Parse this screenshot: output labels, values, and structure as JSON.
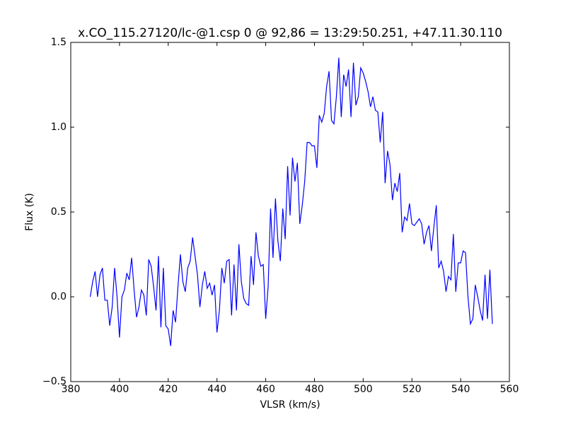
{
  "chart_data": {
    "type": "line",
    "title": "x.CO_115.27120/lc-@1.csp 0 @ 92,86 = 13:29:50.251, +47.11.30.110",
    "xlabel": "VLSR (km/s)",
    "ylabel": "Flux (K)",
    "color": "#0000ff",
    "x": [
      388,
      389,
      390,
      391,
      392,
      393,
      394,
      395,
      396,
      397,
      398,
      399,
      400,
      401,
      402,
      403,
      404,
      405,
      406,
      407,
      408,
      409,
      410,
      411,
      412,
      413,
      414,
      415,
      416,
      417,
      418,
      419,
      420,
      421,
      422,
      423,
      424,
      425,
      426,
      427,
      428,
      429,
      430,
      431,
      432,
      433,
      434,
      435,
      436,
      437,
      438,
      439,
      440,
      441,
      442,
      443,
      444,
      445,
      446,
      447,
      448,
      449,
      450,
      451,
      452,
      453,
      454,
      455,
      456,
      457,
      458,
      459,
      460,
      461,
      462,
      463,
      464,
      465,
      466,
      467,
      468,
      469,
      470,
      471,
      472,
      473,
      474,
      475,
      476,
      477,
      478,
      479,
      480,
      481,
      482,
      483,
      484,
      485,
      486,
      487,
      488,
      489,
      490,
      491,
      492,
      493,
      494,
      495,
      496,
      497,
      498,
      499,
      500,
      501,
      502,
      503,
      504,
      505,
      506,
      507,
      508,
      509,
      510,
      511,
      512,
      513,
      514,
      515,
      516,
      517,
      518,
      519,
      520,
      521,
      522,
      523,
      524,
      525,
      526,
      527,
      528,
      529,
      530,
      531,
      532,
      533,
      534,
      535,
      536,
      537,
      538,
      539,
      540,
      541,
      542,
      543,
      544,
      545,
      546,
      547,
      548,
      549,
      550,
      551,
      552,
      553
    ],
    "values": [
      0,
      0.09,
      0.15,
      0,
      0.13,
      0.17,
      -0.02,
      -0.02,
      -0.17,
      -0.06,
      0.17,
      0,
      -0.24,
      0,
      0.04,
      0.14,
      0.1,
      0.23,
      0.04,
      -0.12,
      -0.06,
      0.04,
      0.01,
      -0.11,
      0.22,
      0.18,
      0.06,
      -0.08,
      0.24,
      -0.18,
      0.17,
      -0.17,
      -0.19,
      -0.29,
      -0.08,
      -0.15,
      0.06,
      0.25,
      0.09,
      0.03,
      0.17,
      0.21,
      0.35,
      0.24,
      0.13,
      -0.06,
      0.07,
      0.15,
      0.05,
      0.08,
      0.01,
      0.07,
      -0.21,
      -0.08,
      0.17,
      0.08,
      0.21,
      0.22,
      -0.11,
      0.19,
      -0.08,
      0.31,
      0.09,
      -0.01,
      -0.04,
      -0.05,
      0.24,
      0.07,
      0.38,
      0.24,
      0.18,
      0.19,
      -0.13,
      0.06,
      0.52,
      0.23,
      0.58,
      0.33,
      0.21,
      0.52,
      0.34,
      0.77,
      0.48,
      0.82,
      0.68,
      0.79,
      0.43,
      0.54,
      0.68,
      0.91,
      0.91,
      0.89,
      0.89,
      0.76,
      1.07,
      1.03,
      1.08,
      1.24,
      1.33,
      1.04,
      1.02,
      1.18,
      1.41,
      1.06,
      1.31,
      1.24,
      1.34,
      1.06,
      1.38,
      1.13,
      1.18,
      1.35,
      1.32,
      1.27,
      1.21,
      1.12,
      1.18,
      1.1,
      1.09,
      0.91,
      1.09,
      0.67,
      0.86,
      0.78,
      0.57,
      0.67,
      0.62,
      0.73,
      0.38,
      0.47,
      0.45,
      0.55,
      0.43,
      0.42,
      0.44,
      0.46,
      0.43,
      0.31,
      0.38,
      0.42,
      0.27,
      0.41,
      0.54,
      0.17,
      0.21,
      0.15,
      0.03,
      0.12,
      0.1,
      0.37,
      0.03,
      0.2,
      0.2,
      0.27,
      0.26,
      0,
      -0.16,
      -0.13,
      0.07,
      0,
      -0.08,
      -0.14,
      0.13,
      -0.13,
      0.16,
      -0.16
    ],
    "xlim": [
      380,
      560
    ],
    "xticks": [
      380,
      400,
      420,
      440,
      460,
      480,
      500,
      520,
      540,
      560
    ],
    "ylim": [
      -0.5,
      1.5
    ],
    "yticks": [
      {
        "value": -0.5,
        "label": "−0.5"
      },
      {
        "value": 0,
        "label": "0.0"
      },
      0.5,
      {
        "value": 1,
        "label": "1.0"
      },
      1.5
    ]
  }
}
